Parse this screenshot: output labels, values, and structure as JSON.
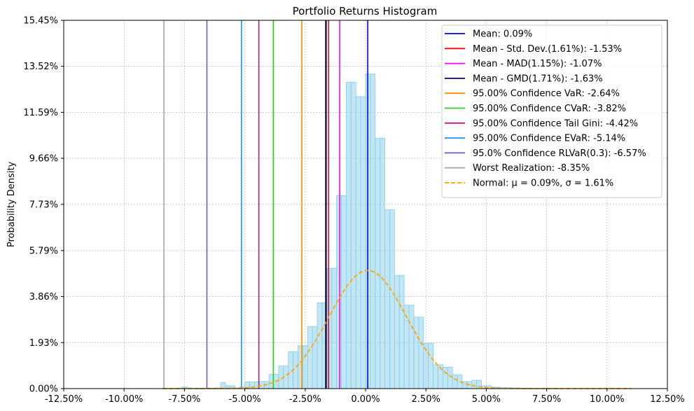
{
  "chart_data": {
    "type": "bar",
    "title": "Portfolio Returns Histogram",
    "xlabel": "",
    "ylabel": "Probability Density",
    "xlim": [
      -0.125,
      0.125
    ],
    "ylim": [
      0,
      0.1545
    ],
    "x_tick_values": [
      -0.125,
      -0.1,
      -0.075,
      -0.05,
      -0.025,
      0.0,
      0.025,
      0.05,
      0.075,
      0.1,
      0.125
    ],
    "x_tick_labels": [
      "-12.50%",
      "-10.00%",
      "-7.50%",
      "-5.00%",
      "-2.50%",
      "0.00%",
      "2.50%",
      "5.00%",
      "7.50%",
      "10.00%",
      "12.50%"
    ],
    "y_tick_values": [
      0.0,
      0.0193,
      0.0386,
      0.0579,
      0.0773,
      0.0966,
      0.1159,
      0.1352,
      0.1545
    ],
    "y_tick_labels": [
      "0.00%",
      "1.93%",
      "3.86%",
      "5.79%",
      "7.73%",
      "9.66%",
      "11.59%",
      "13.52%",
      "15.45%"
    ],
    "grid": true,
    "legend_position": "top-right",
    "histogram": {
      "color": "#87ceeb",
      "bin_width": 0.002,
      "bin_starts": [
        -0.084,
        -0.082,
        -0.08,
        -0.078,
        -0.076,
        -0.074,
        -0.072,
        -0.07,
        -0.068,
        -0.066,
        -0.064,
        -0.062,
        -0.06,
        -0.058,
        -0.056,
        -0.054,
        -0.052,
        -0.05,
        -0.048,
        -0.046,
        -0.044,
        -0.042,
        -0.04,
        -0.038,
        -0.036,
        -0.034,
        -0.032,
        -0.03,
        -0.028,
        -0.026,
        -0.024,
        -0.022,
        -0.02,
        -0.018,
        -0.016,
        -0.014,
        -0.012,
        -0.01,
        -0.008,
        -0.006,
        -0.004,
        -0.002,
        0.0,
        0.002,
        0.004,
        0.006,
        0.008,
        0.01,
        0.012,
        0.014,
        0.016,
        0.018,
        0.02,
        0.022,
        0.024,
        0.026,
        0.028,
        0.03,
        0.032,
        0.034,
        0.036,
        0.038,
        0.04,
        0.042,
        0.044,
        0.046,
        0.048,
        0.05,
        0.052,
        0.054,
        0.056,
        0.058,
        0.06,
        0.062,
        0.064,
        0.066,
        0.068,
        0.07,
        0.072,
        0.074,
        0.076,
        0.078,
        0.08,
        0.082,
        0.084,
        0.086,
        0.088,
        0.09,
        0.092,
        0.094,
        0.096,
        0.098,
        0.1,
        0.102,
        0.104,
        0.106,
        0.108
      ],
      "densities": [
        0.0002,
        0.0001,
        0.0001,
        0.0002,
        0.0008,
        0.0003,
        0.0001,
        0.0002,
        0.0001,
        0.0001,
        0.0002,
        0.0003,
        0.0025,
        0.0012,
        0.0012,
        0.0003,
        0.0008,
        0.0028,
        0.0028,
        0.0029,
        0.003,
        0.003,
        0.006,
        0.006,
        0.0095,
        0.0095,
        0.0155,
        0.0155,
        0.018,
        0.018,
        0.026,
        0.026,
        0.036,
        0.036,
        0.0505,
        0.0505,
        0.081,
        0.081,
        0.1285,
        0.1285,
        0.1225,
        0.1225,
        0.132,
        0.132,
        0.105,
        0.105,
        0.075,
        0.075,
        0.0475,
        0.0475,
        0.035,
        0.035,
        0.03,
        0.03,
        0.019,
        0.019,
        0.01,
        0.01,
        0.009,
        0.009,
        0.0058,
        0.0058,
        0.003,
        0.003,
        0.0035,
        0.0035,
        0.0012,
        0.0012,
        0.0006,
        0.0006,
        0.0004,
        0.0004,
        0.0003,
        0.0003,
        0.0002,
        0.0002,
        0.0001,
        0.0001,
        0.0001,
        0.0001,
        0.0001,
        0.0001,
        0.0,
        0.0,
        0.0,
        0.0,
        0.0,
        0.0,
        0.0,
        0.0,
        0.0,
        0.0,
        0.0,
        0.0,
        0.0,
        0.0,
        0.0
      ]
    },
    "normal_curve": {
      "label": "Normal: μ = 0.09%, σ = 1.61%",
      "mu": 0.0009,
      "sigma": 0.0161,
      "x_range": [
        -0.084,
        0.11
      ],
      "color": "#ffa500",
      "style": "dashed"
    },
    "series": [
      {
        "name": "Mean: 0.09%",
        "x": 0.0009,
        "color": "#0000ff"
      },
      {
        "name": "Mean - Std. Dev.(1.61%): -1.53%",
        "x": -0.0153,
        "color": "#ff0000"
      },
      {
        "name": "Mean - MAD(1.15%): -1.07%",
        "x": -0.0107,
        "color": "#ff00ff"
      },
      {
        "name": "Mean - GMD(1.71%): -1.63%",
        "x": -0.0163,
        "color": "#00008b"
      },
      {
        "name": "95.00% Confidence VaR: -2.64%",
        "x": -0.0264,
        "color": "#ff8c00"
      },
      {
        "name": "95.00% Confidence CVaR: -3.82%",
        "x": -0.0382,
        "color": "#32cd32"
      },
      {
        "name": "95.00% Confidence Tail Gini: -4.42%",
        "x": -0.0442,
        "color": "#c71585"
      },
      {
        "name": "95.00% Confidence EVaR: -5.14%",
        "x": -0.0514,
        "color": "#1e90ff"
      },
      {
        "name": "95.0% Confidence RLVaR(0.3): -6.57%",
        "x": -0.0657,
        "color": "#6a5acd"
      },
      {
        "name": "Worst Realization: -8.35%",
        "x": -0.0835,
        "color": "#a9a9a9"
      }
    ],
    "extra_vertical_lines": [
      {
        "x": -0.0165,
        "color": "#000000"
      }
    ]
  }
}
